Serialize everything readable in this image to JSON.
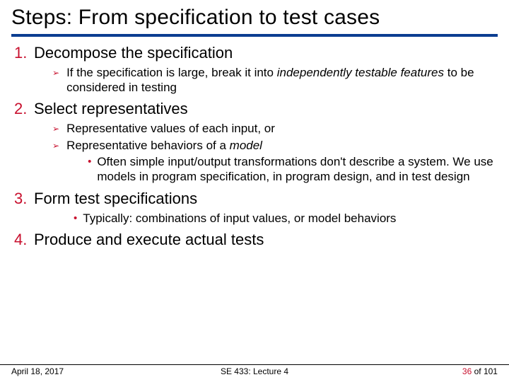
{
  "title": "Steps: From specification to test cases",
  "steps": [
    {
      "num": "1.",
      "title": "Decompose the specification",
      "subs": [
        {
          "pre": "If the specification is large, break it into ",
          "ital": "independently testable features",
          "post": " to be considered in testing"
        }
      ]
    },
    {
      "num": "2.",
      "title": "Select representatives",
      "subs": [
        {
          "pre": "Representative values of each input, or",
          "ital": "",
          "post": ""
        },
        {
          "pre": "Representative behaviors of a ",
          "ital": "model",
          "post": "",
          "dots": [
            "Often simple input/output transformations don't describe a system.  We use models in program specification, in program design, and in test design"
          ]
        }
      ]
    },
    {
      "num": "3.",
      "title": "Form test specifications",
      "shallow_dots": [
        "Typically: combinations of input values, or model behaviors"
      ]
    },
    {
      "num": "4.",
      "title": "Produce and execute actual tests"
    }
  ],
  "footer": {
    "date": "April 18, 2017",
    "center": "SE 433: Lecture 4",
    "page_current": "36",
    "page_sep": " of ",
    "page_total": "101"
  },
  "colors": {
    "accent_red": "#c8102e",
    "title_underline": "#0b3d91",
    "text": "#000000",
    "background": "#ffffff"
  },
  "typography": {
    "title_fontsize": 30,
    "step_fontsize": 22,
    "body_fontsize": 17,
    "footer_fontsize": 12,
    "font_family": "Arial"
  }
}
